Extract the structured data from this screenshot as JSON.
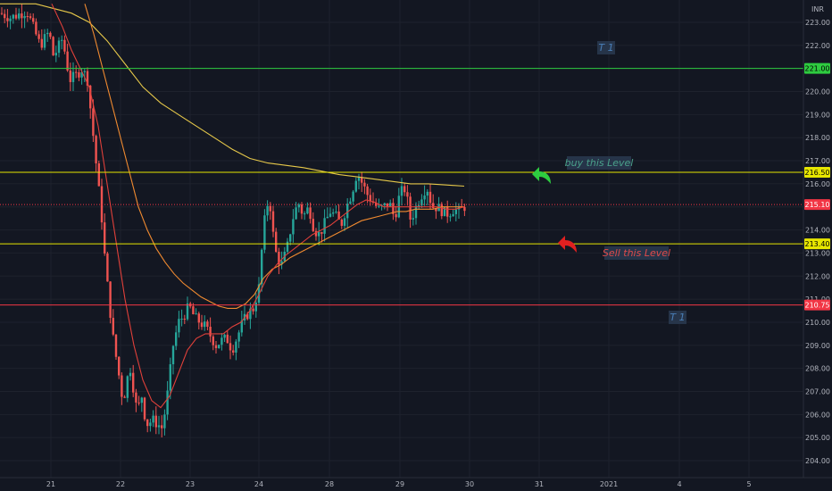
{
  "chart_data": {
    "type": "candlestick",
    "currency": "INR",
    "ylim": [
      203.6,
      223.8
    ],
    "x_tick_labels": [
      "21",
      "22",
      "23",
      "24",
      "28",
      "29",
      "30",
      "31",
      "2021",
      "4",
      "5"
    ],
    "y_ticks": [
      "204.00",
      "205.00",
      "206.00",
      "207.00",
      "208.00",
      "209.00",
      "210.00",
      "211.00",
      "212.00",
      "213.00",
      "214.00",
      "215.00",
      "216.00",
      "217.00",
      "218.00",
      "219.00",
      "220.00",
      "221.00",
      "222.00",
      "223.00"
    ],
    "levels": [
      {
        "value": 221.0,
        "label": "221.00",
        "color": "#2ecc40"
      },
      {
        "value": 216.5,
        "label": "216.50",
        "color": "#e6e600"
      },
      {
        "value": 213.4,
        "label": "213.40",
        "color": "#e6e600"
      },
      {
        "value": 210.75,
        "label": "210.75",
        "color": "#f23645"
      }
    ],
    "last_price": {
      "value": 215.1,
      "label": "215.10",
      "color": "#f23645"
    },
    "annotations": [
      {
        "text": "T 1",
        "color": "#4a7fb8"
      },
      {
        "text": "buy this Level",
        "color": "#4aa08a"
      },
      {
        "text": "Sell this Level",
        "color": "#e04b4b"
      },
      {
        "text": "T 1",
        "color": "#4a7fb8"
      }
    ],
    "price_path": [
      [
        0,
        223.4
      ],
      [
        12,
        223.2
      ],
      [
        30,
        223.5
      ],
      [
        45,
        222.0
      ],
      [
        55,
        222.6
      ],
      [
        60,
        221.5
      ],
      [
        70,
        222.3
      ],
      [
        78,
        220.5
      ],
      [
        85,
        220.7
      ],
      [
        92,
        221.0
      ],
      [
        98,
        220.5
      ],
      [
        102,
        219.0
      ],
      [
        106,
        217.5
      ],
      [
        110,
        216.0
      ],
      [
        114,
        214.5
      ],
      [
        118,
        212.5
      ],
      [
        122,
        211.0
      ],
      [
        126,
        209.5
      ],
      [
        130,
        208.5
      ],
      [
        134,
        207.5
      ],
      [
        138,
        206.5
      ],
      [
        142,
        207.5
      ],
      [
        146,
        208.0
      ],
      [
        150,
        207.0
      ],
      [
        154,
        206.0
      ],
      [
        158,
        207.0
      ],
      [
        162,
        206.0
      ],
      [
        166,
        205.5
      ],
      [
        170,
        205.8
      ],
      [
        176,
        205.6
      ],
      [
        182,
        205.4
      ],
      [
        188,
        207.0
      ],
      [
        194,
        209.0
      ],
      [
        200,
        210.0
      ],
      [
        206,
        210.3
      ],
      [
        212,
        210.7
      ],
      [
        218,
        210.2
      ],
      [
        224,
        210.0
      ],
      [
        230,
        209.8
      ],
      [
        236,
        209.4
      ],
      [
        242,
        209.0
      ],
      [
        248,
        209.2
      ],
      [
        254,
        209.3
      ],
      [
        260,
        208.8
      ],
      [
        266,
        209.4
      ],
      [
        272,
        210.0
      ],
      [
        278,
        210.4
      ],
      [
        284,
        210.6
      ],
      [
        290,
        211.5
      ],
      [
        294,
        213.5
      ],
      [
        298,
        215.0
      ],
      [
        302,
        215.3
      ],
      [
        306,
        213.8
      ],
      [
        310,
        212.8
      ],
      [
        316,
        212.5
      ],
      [
        322,
        213.3
      ],
      [
        328,
        214.5
      ],
      [
        334,
        215.2
      ],
      [
        340,
        214.6
      ],
      [
        346,
        215.0
      ],
      [
        352,
        214.0
      ],
      [
        358,
        213.8
      ],
      [
        364,
        214.3
      ],
      [
        370,
        214.8
      ],
      [
        376,
        214.6
      ],
      [
        382,
        214.2
      ],
      [
        388,
        215.0
      ],
      [
        394,
        215.6
      ],
      [
        400,
        216.5
      ],
      [
        406,
        216.0
      ],
      [
        412,
        215.5
      ],
      [
        418,
        215.2
      ],
      [
        424,
        214.9
      ],
      [
        430,
        215.0
      ],
      [
        436,
        215.2
      ],
      [
        442,
        214.5
      ],
      [
        448,
        215.6
      ],
      [
        454,
        215.8
      ],
      [
        460,
        214.4
      ],
      [
        466,
        215.0
      ],
      [
        472,
        215.5
      ],
      [
        478,
        215.9
      ],
      [
        484,
        215.0
      ],
      [
        490,
        215.0
      ],
      [
        496,
        214.8
      ],
      [
        502,
        214.7
      ],
      [
        508,
        214.9
      ],
      [
        514,
        214.8
      ],
      [
        520,
        215.0
      ],
      [
        523,
        215.1
      ]
    ],
    "ma_fast": [
      [
        58,
        223.8
      ],
      [
        70,
        222.8
      ],
      [
        80,
        221.8
      ],
      [
        90,
        221.0
      ],
      [
        100,
        220.2
      ],
      [
        110,
        218.5
      ],
      [
        120,
        216.0
      ],
      [
        130,
        213.5
      ],
      [
        140,
        211.0
      ],
      [
        150,
        209.0
      ],
      [
        160,
        207.5
      ],
      [
        170,
        206.6
      ],
      [
        180,
        206.3
      ],
      [
        190,
        206.8
      ],
      [
        200,
        207.8
      ],
      [
        210,
        208.8
      ],
      [
        220,
        209.3
      ],
      [
        230,
        209.5
      ],
      [
        240,
        209.5
      ],
      [
        250,
        209.5
      ],
      [
        260,
        209.8
      ],
      [
        270,
        210.0
      ],
      [
        280,
        210.5
      ],
      [
        290,
        211.2
      ],
      [
        300,
        212.0
      ],
      [
        310,
        212.5
      ],
      [
        320,
        212.9
      ],
      [
        330,
        213.2
      ],
      [
        340,
        213.5
      ],
      [
        350,
        213.8
      ],
      [
        360,
        214.0
      ],
      [
        370,
        214.2
      ],
      [
        380,
        214.5
      ],
      [
        390,
        214.8
      ],
      [
        400,
        215.1
      ],
      [
        410,
        215.3
      ],
      [
        420,
        215.2
      ],
      [
        430,
        215.0
      ],
      [
        440,
        215.0
      ],
      [
        450,
        215.0
      ],
      [
        460,
        215.0
      ],
      [
        470,
        215.0
      ],
      [
        480,
        215.0
      ],
      [
        490,
        215.0
      ],
      [
        500,
        214.9
      ],
      [
        510,
        214.9
      ],
      [
        520,
        215.0
      ]
    ],
    "ma_mid": [
      [
        95,
        223.8
      ],
      [
        105,
        222.5
      ],
      [
        115,
        221.0
      ],
      [
        125,
        219.5
      ],
      [
        135,
        218.0
      ],
      [
        145,
        216.5
      ],
      [
        155,
        215.0
      ],
      [
        165,
        214.0
      ],
      [
        175,
        213.2
      ],
      [
        185,
        212.6
      ],
      [
        195,
        212.1
      ],
      [
        205,
        211.7
      ],
      [
        215,
        211.4
      ],
      [
        225,
        211.1
      ],
      [
        235,
        210.9
      ],
      [
        245,
        210.7
      ],
      [
        255,
        210.6
      ],
      [
        265,
        210.6
      ],
      [
        275,
        210.8
      ],
      [
        285,
        211.2
      ],
      [
        295,
        211.9
      ],
      [
        305,
        212.3
      ],
      [
        315,
        212.5
      ],
      [
        325,
        212.8
      ],
      [
        335,
        213.0
      ],
      [
        345,
        213.2
      ],
      [
        355,
        213.4
      ],
      [
        365,
        213.6
      ],
      [
        375,
        213.8
      ],
      [
        385,
        214.0
      ],
      [
        395,
        214.2
      ],
      [
        405,
        214.4
      ],
      [
        415,
        214.5
      ],
      [
        425,
        214.6
      ],
      [
        435,
        214.7
      ],
      [
        445,
        214.8
      ],
      [
        455,
        214.8
      ],
      [
        465,
        214.9
      ],
      [
        475,
        214.9
      ],
      [
        485,
        214.9
      ],
      [
        495,
        215.0
      ],
      [
        505,
        215.0
      ],
      [
        520,
        215.0
      ]
    ],
    "ma_slow": [
      [
        0,
        223.8
      ],
      [
        40,
        223.8
      ],
      [
        80,
        223.4
      ],
      [
        100,
        223.0
      ],
      [
        120,
        222.2
      ],
      [
        140,
        221.2
      ],
      [
        160,
        220.2
      ],
      [
        180,
        219.5
      ],
      [
        200,
        219.0
      ],
      [
        220,
        218.5
      ],
      [
        240,
        218.0
      ],
      [
        260,
        217.5
      ],
      [
        280,
        217.1
      ],
      [
        300,
        216.9
      ],
      [
        320,
        216.8
      ],
      [
        340,
        216.7
      ],
      [
        360,
        216.55
      ],
      [
        380,
        216.4
      ],
      [
        400,
        216.3
      ],
      [
        420,
        216.2
      ],
      [
        440,
        216.1
      ],
      [
        460,
        216.0
      ],
      [
        480,
        216.0
      ],
      [
        500,
        215.95
      ],
      [
        520,
        215.9
      ]
    ]
  }
}
